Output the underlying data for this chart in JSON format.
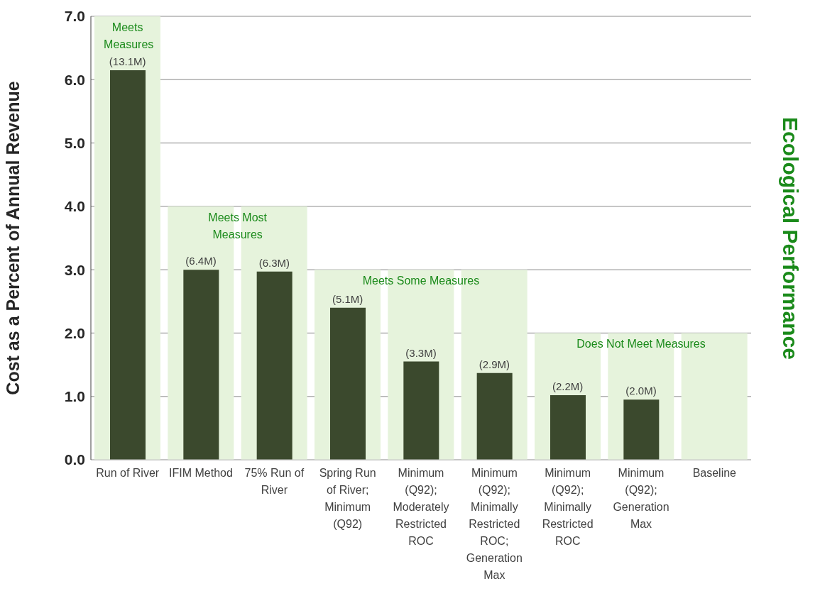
{
  "chart_data": {
    "type": "bar",
    "ylabel": "Cost as a Percent of Annual Revenue",
    "categories": [
      "Run of River",
      "IFIM Method",
      "75% Run of River",
      "Spring Run of River; Minimum (Q92)",
      "Minimum (Q92); Moderately Restricted ROC",
      "Minimum (Q92); Minimally Restricted ROC; Generation Max",
      "Minimum (Q92); Minimally Restricted ROC",
      "Minimum (Q92); Generation Max",
      "Baseline"
    ],
    "series": [
      {
        "color": "#e6f3dc",
        "values": [
          7.0,
          4.0,
          4.0,
          3.0,
          3.0,
          3.0,
          2.0,
          2.0,
          2.0
        ]
      },
      {
        "color": "#3b492d",
        "values": [
          6.15,
          3.0,
          2.97,
          2.4,
          1.55,
          1.37,
          1.02,
          0.95,
          0
        ]
      }
    ],
    "ylim": [
      0,
      7
    ],
    "yticks": [
      {
        "value": 0,
        "label": "0.0"
      },
      {
        "value": 1,
        "label": "1.0"
      },
      {
        "value": 2,
        "label": "2.0"
      },
      {
        "value": 3,
        "label": "3.0"
      },
      {
        "value": 4,
        "label": "4.0"
      },
      {
        "value": 5,
        "label": "5.0"
      },
      {
        "value": 6,
        "label": "6.0"
      },
      {
        "value": 7,
        "label": "7.0"
      }
    ],
    "grid": "y",
    "annotations": [
      {
        "text": "Meets Measures",
        "x": "Run of River",
        "y": 7.0
      },
      {
        "text": "Meets Most Measures",
        "x": "IFIM Method",
        "y": 4.0
      },
      {
        "text": "Meets Some Measures",
        "x": "Spring Run of River; Minimum (Q92)",
        "y": 3.0
      },
      {
        "text": "Does Not Meet Measures",
        "x": "Minimum (Q92); Minimally Restricted ROC",
        "y": 2.0
      },
      {
        "text": "(13.1M)",
        "x": "Run of River",
        "y": 6.15
      },
      {
        "text": "(6.4M)",
        "x": "IFIM Method",
        "y": 3.0
      },
      {
        "text": "(6.3M)",
        "x": "75% Run of River",
        "y": 2.97
      },
      {
        "text": "(5.1M)",
        "x": "Spring Run of River; Minimum (Q92)",
        "y": 2.4
      },
      {
        "text": "(3.3M)",
        "x": "Minimum (Q92); Moderately Restricted ROC",
        "y": 1.55
      },
      {
        "text": "(2.9M)",
        "x": "Minimum (Q92); Minimally Restricted ROC; Generation Max",
        "y": 1.37
      },
      {
        "text": "(2.2M)",
        "x": "Minimum (Q92); Minimally Restricted ROC",
        "y": 1.02
      },
      {
        "text": "(2.0M)",
        "x": "Minimum (Q92); Generation Max",
        "y": 0.95
      },
      "Ecological Performance"
    ]
  }
}
